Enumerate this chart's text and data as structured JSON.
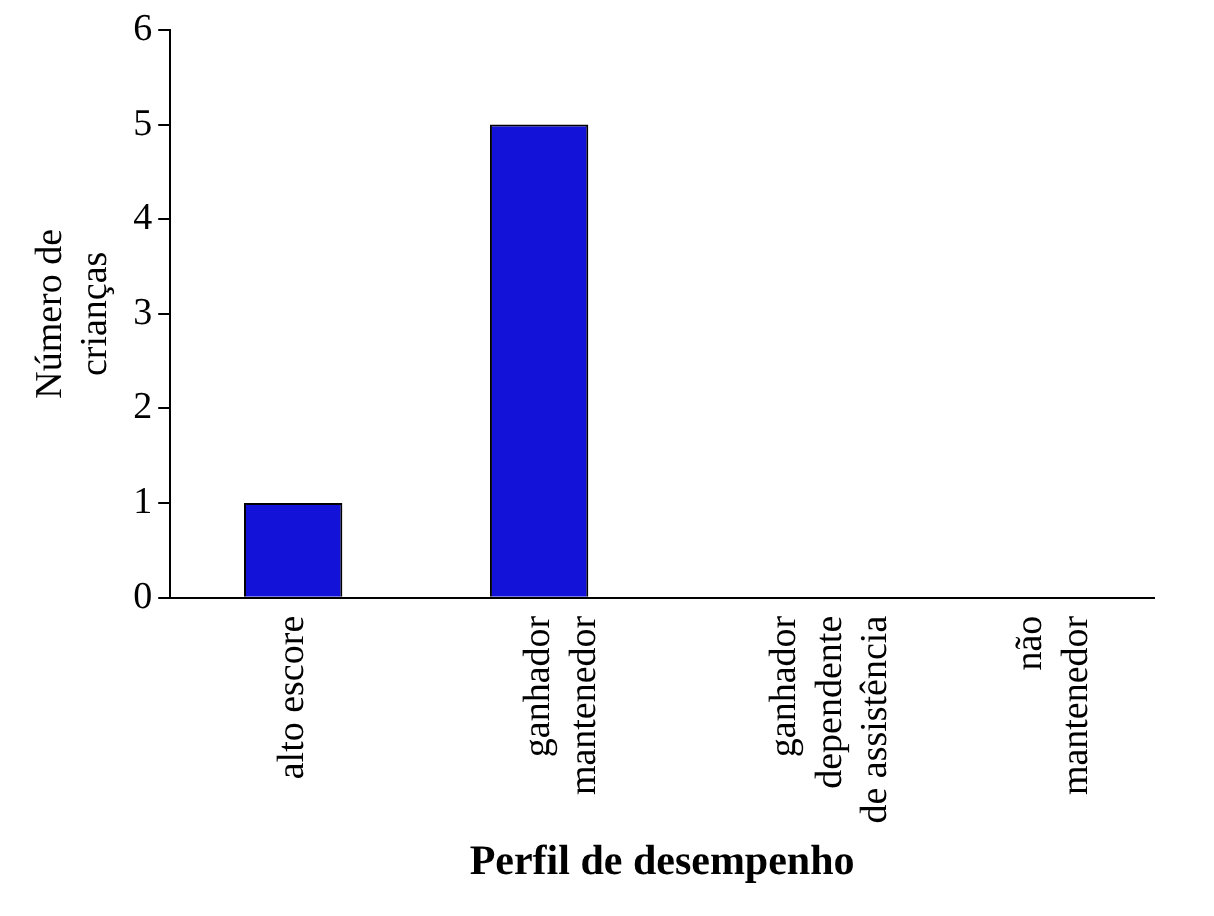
{
  "chart_data": {
    "type": "bar",
    "xlabel": "Perfil de desempenho",
    "ylabel": "Número de\ncrianças",
    "categories": [
      "alto escore",
      "ganhador\nmantenedor",
      "ganhador\ndependente\nde assistência",
      "não\nmantenedor"
    ],
    "values": [
      1,
      5,
      0,
      0
    ],
    "color": "#1212d8",
    "ylim": [
      0,
      6
    ],
    "yticks": [
      0,
      1,
      2,
      3,
      4,
      5,
      6
    ],
    "grid": false,
    "legend": false
  }
}
